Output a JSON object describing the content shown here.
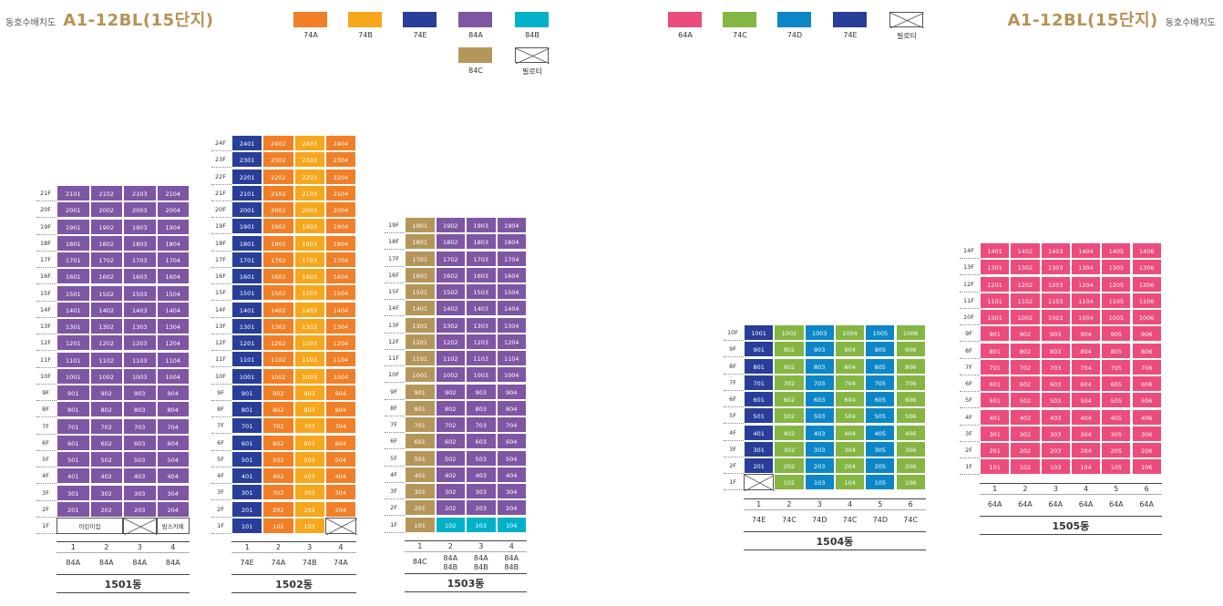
{
  "header": {
    "left_small": "동호수배치도",
    "left_big": "A1-12BL(15단지)",
    "right_big": "A1-12BL(15단지)",
    "right_small": "동호수배치도"
  },
  "colors": {
    "74A": "#f07f27",
    "74B": "#f7a71b",
    "74E": "#283e98",
    "84A": "#7e56a3",
    "84B": "#00b2c8",
    "84C": "#b5965a",
    "64A": "#ec4c7b",
    "74C": "#85b543",
    "74D": "#0c86c6",
    "piloti": "#ffffff"
  },
  "legend_left": [
    {
      "type": "74A",
      "label": "74A"
    },
    {
      "type": "74B",
      "label": "74B"
    },
    {
      "type": "74E",
      "label": "74E"
    },
    {
      "type": "84A",
      "label": "84A"
    },
    {
      "type": "84B",
      "label": "84B"
    },
    {
      "type": "84C",
      "label": "84C"
    },
    {
      "type": "piloti",
      "label": "필로티"
    }
  ],
  "legend_right": [
    {
      "type": "64A",
      "label": "64A"
    },
    {
      "type": "74C",
      "label": "74C"
    },
    {
      "type": "74D",
      "label": "74D"
    },
    {
      "type": "74E",
      "label": "74E"
    },
    {
      "type": "piloti",
      "label": "필로티"
    }
  ],
  "buildings": [
    {
      "name": "1501동",
      "floors": 21,
      "line_types": [
        "84A",
        "84A",
        "84A",
        "84A"
      ],
      "bottom_labels": [
        [
          "84A"
        ],
        [
          "84A"
        ],
        [
          "84A"
        ],
        [
          "84A"
        ]
      ],
      "ground": [
        {
          "text": "어린이집",
          "span": 2
        },
        {
          "x": true
        },
        {
          "text": "맘스카페"
        }
      ]
    },
    {
      "name": "1502동",
      "floors": 24,
      "line_types": [
        "74E",
        "74A",
        "74B",
        "74A"
      ],
      "bottom_labels": [
        [
          "74E"
        ],
        [
          "74A"
        ],
        [
          "74B"
        ],
        [
          "74A"
        ]
      ],
      "ground": [
        {
          "unit": "101",
          "type": "74E"
        },
        {
          "unit": "102",
          "type": "74A"
        },
        {
          "unit": "103",
          "type": "74B"
        },
        {
          "x": true
        }
      ]
    },
    {
      "name": "1503동",
      "floors": 19,
      "line_types": [
        "84C",
        "84A",
        "84A",
        "84A"
      ],
      "bottom_labels": [
        [
          "84C"
        ],
        [
          "84A",
          "84B"
        ],
        [
          "84A",
          "84B"
        ],
        [
          "84A",
          "84B"
        ]
      ],
      "ground": [
        {
          "unit": "101",
          "type": "84C"
        },
        {
          "unit": "102",
          "type": "84B"
        },
        {
          "unit": "103",
          "type": "84B"
        },
        {
          "unit": "104",
          "type": "84B"
        }
      ]
    },
    {
      "name": "1504동",
      "floors": 10,
      "line_types": [
        "74E",
        "74C",
        "74D",
        "74C",
        "74D",
        "74C"
      ],
      "bottom_labels": [
        [
          "74E"
        ],
        [
          "74C"
        ],
        [
          "74D"
        ],
        [
          "74C"
        ],
        [
          "74D"
        ],
        [
          "74C"
        ]
      ],
      "ground": [
        {
          "x": true
        },
        {
          "unit": "102",
          "type": "74C"
        },
        {
          "unit": "103",
          "type": "74D"
        },
        {
          "unit": "104",
          "type": "74C"
        },
        {
          "unit": "105",
          "type": "74D"
        },
        {
          "unit": "106",
          "type": "74C"
        }
      ]
    },
    {
      "name": "1505동",
      "floors": 14,
      "line_types": [
        "64A",
        "64A",
        "64A",
        "64A",
        "64A",
        "64A"
      ],
      "bottom_labels": [
        [
          "64A"
        ],
        [
          "64A"
        ],
        [
          "64A"
        ],
        [
          "64A"
        ],
        [
          "64A"
        ],
        [
          "64A"
        ]
      ],
      "ground": [
        {
          "unit": "101",
          "type": "64A"
        },
        {
          "unit": "102",
          "type": "64A"
        },
        {
          "unit": "103",
          "type": "64A"
        },
        {
          "unit": "104",
          "type": "64A"
        },
        {
          "unit": "105",
          "type": "64A"
        },
        {
          "unit": "106",
          "type": "64A"
        }
      ]
    }
  ]
}
